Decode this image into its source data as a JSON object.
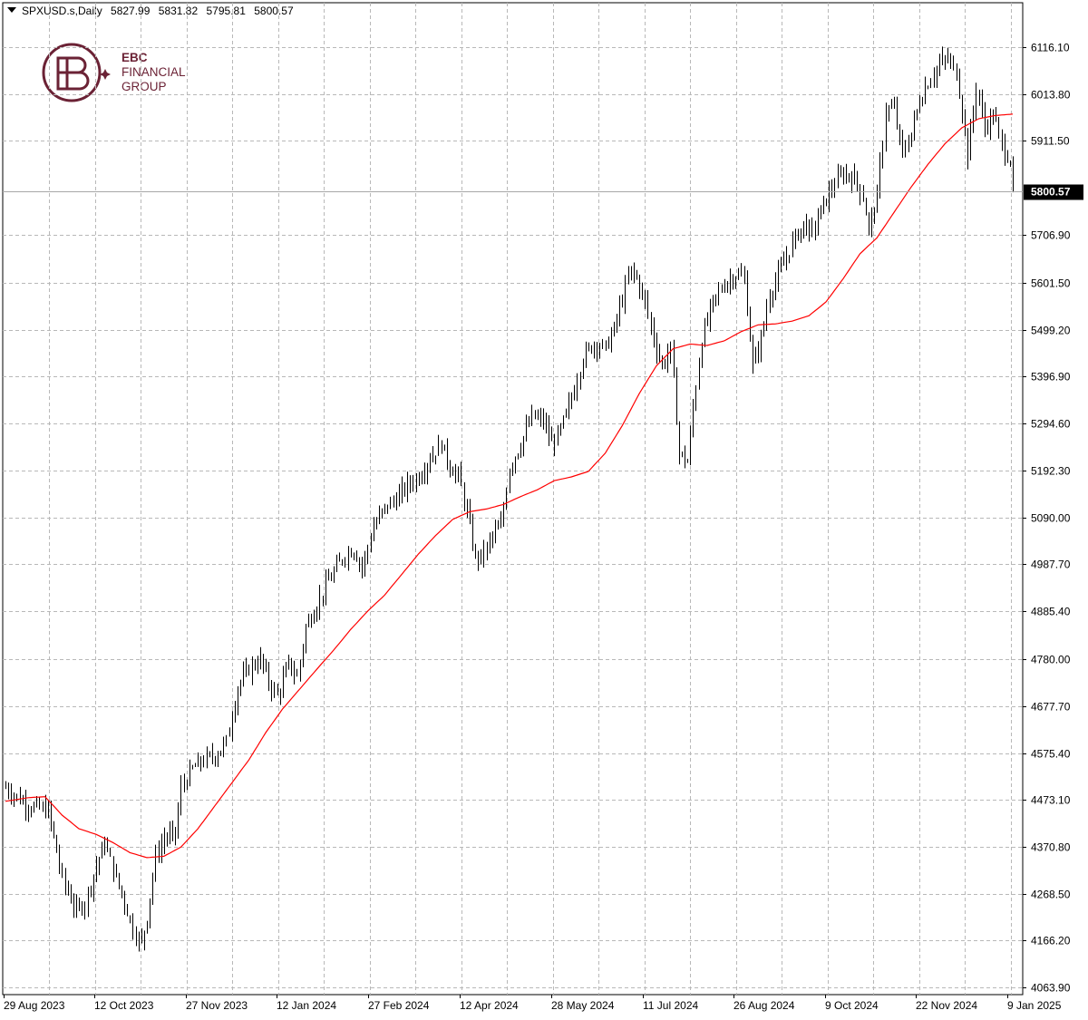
{
  "header": {
    "symbol": "SPXUSD.s,Daily",
    "open": "5827.99",
    "high": "5831.82",
    "low": "5795.81",
    "close": "5800.57"
  },
  "logo": {
    "line1": "EBC",
    "line2": "FINANCIAL",
    "line3": "GROUP",
    "color": "#6b2235"
  },
  "chart_data": {
    "type": "ohlc",
    "title": "",
    "price_labels": [
      "6116.10",
      "6013.80",
      "5911.50",
      "5706.90",
      "5601.50",
      "5499.20",
      "5396.90",
      "5294.60",
      "5192.30",
      "5090.00",
      "4987.70",
      "4885.40",
      "4780.00",
      "4677.70",
      "4575.40",
      "4473.10",
      "4370.80",
      "4268.50",
      "4166.20",
      "4063.90"
    ],
    "price_ticks": [
      6116.1,
      6013.8,
      5911.5,
      5706.9,
      5601.5,
      5499.2,
      5396.9,
      5294.6,
      5192.3,
      5090.0,
      4987.7,
      4885.4,
      4780.0,
      4677.7,
      4575.4,
      4473.1,
      4370.8,
      4268.5,
      4166.2,
      4063.9
    ],
    "current_price": 5800.57,
    "current_price_label": "5800.57",
    "x_labels": [
      "29 Aug 2023",
      "12 Oct 2023",
      "27 Nov 2023",
      "12 Jan 2024",
      "27 Feb 2024",
      "12 Apr 2024",
      "28 May 2024",
      "11 Jul 2024",
      "26 Aug 2024",
      "9 Oct 2024",
      "22 Nov 2024",
      "9 Jan 2025"
    ],
    "ylim": [
      4063.9,
      6116.1
    ],
    "grid": true,
    "moving_average_color": "#ff0000",
    "bar_color": "#000000",
    "bar_keypoints": [
      [
        0,
        4500
      ],
      [
        8,
        4460
      ],
      [
        15,
        4450
      ],
      [
        20,
        4300
      ],
      [
        25,
        4230
      ],
      [
        28,
        4250
      ],
      [
        32,
        4330
      ],
      [
        35,
        4380
      ],
      [
        38,
        4320
      ],
      [
        42,
        4250
      ],
      [
        45,
        4190
      ],
      [
        48,
        4160
      ],
      [
        50,
        4220
      ],
      [
        53,
        4350
      ],
      [
        56,
        4390
      ],
      [
        60,
        4400
      ],
      [
        62,
        4500
      ],
      [
        66,
        4540
      ],
      [
        70,
        4560
      ],
      [
        74,
        4570
      ],
      [
        78,
        4600
      ],
      [
        82,
        4720
      ],
      [
        86,
        4760
      ],
      [
        90,
        4780
      ],
      [
        93,
        4730
      ],
      [
        96,
        4700
      ],
      [
        100,
        4770
      ],
      [
        103,
        4740
      ],
      [
        106,
        4850
      ],
      [
        110,
        4900
      ],
      [
        113,
        4940
      ],
      [
        116,
        4970
      ],
      [
        120,
        5010
      ],
      [
        123,
        5020
      ],
      [
        126,
        4980
      ],
      [
        130,
        5070
      ],
      [
        134,
        5110
      ],
      [
        138,
        5130
      ],
      [
        142,
        5160
      ],
      [
        146,
        5180
      ],
      [
        150,
        5220
      ],
      [
        154,
        5250
      ],
      [
        157,
        5200
      ],
      [
        160,
        5180
      ],
      [
        163,
        5100
      ],
      [
        166,
        5000
      ],
      [
        169,
        5010
      ],
      [
        172,
        5050
      ],
      [
        175,
        5070
      ],
      [
        178,
        5200
      ],
      [
        182,
        5250
      ],
      [
        186,
        5310
      ],
      [
        190,
        5300
      ],
      [
        193,
        5250
      ],
      [
        196,
        5280
      ],
      [
        200,
        5350
      ],
      [
        204,
        5440
      ],
      [
        208,
        5470
      ],
      [
        212,
        5460
      ],
      [
        215,
        5500
      ],
      [
        218,
        5570
      ],
      [
        221,
        5630
      ],
      [
        223,
        5610
      ],
      [
        226,
        5560
      ],
      [
        229,
        5480
      ],
      [
        232,
        5420
      ],
      [
        235,
        5460
      ],
      [
        238,
        5230
      ],
      [
        241,
        5210
      ],
      [
        243,
        5330
      ],
      [
        246,
        5480
      ],
      [
        250,
        5560
      ],
      [
        254,
        5600
      ],
      [
        258,
        5620
      ],
      [
        261,
        5610
      ],
      [
        264,
        5420
      ],
      [
        267,
        5480
      ],
      [
        270,
        5580
      ],
      [
        274,
        5630
      ],
      [
        278,
        5690
      ],
      [
        282,
        5730
      ],
      [
        285,
        5710
      ],
      [
        288,
        5760
      ],
      [
        292,
        5810
      ],
      [
        296,
        5840
      ],
      [
        300,
        5830
      ],
      [
        303,
        5790
      ],
      [
        305,
        5720
      ],
      [
        308,
        5790
      ],
      [
        311,
        5980
      ],
      [
        314,
        5980
      ],
      [
        317,
        5880
      ],
      [
        320,
        5930
      ],
      [
        323,
        6000
      ],
      [
        326,
        6040
      ],
      [
        330,
        6080
      ],
      [
        333,
        6090
      ],
      [
        336,
        6060
      ],
      [
        338,
        5980
      ],
      [
        340,
        5880
      ],
      [
        343,
        6030
      ],
      [
        346,
        5940
      ],
      [
        349,
        5970
      ],
      [
        352,
        5900
      ],
      [
        355,
        5870
      ],
      [
        356,
        5800
      ]
    ],
    "ma_keypoints": [
      [
        0,
        4470
      ],
      [
        8,
        4478
      ],
      [
        14,
        4480
      ],
      [
        20,
        4440
      ],
      [
        26,
        4410
      ],
      [
        32,
        4398
      ],
      [
        38,
        4380
      ],
      [
        44,
        4358
      ],
      [
        50,
        4347
      ],
      [
        56,
        4350
      ],
      [
        62,
        4370
      ],
      [
        68,
        4410
      ],
      [
        74,
        4460
      ],
      [
        80,
        4510
      ],
      [
        86,
        4560
      ],
      [
        92,
        4620
      ],
      [
        98,
        4672
      ],
      [
        104,
        4715
      ],
      [
        110,
        4758
      ],
      [
        116,
        4800
      ],
      [
        122,
        4845
      ],
      [
        128,
        4885
      ],
      [
        134,
        4920
      ],
      [
        140,
        4965
      ],
      [
        146,
        5010
      ],
      [
        152,
        5050
      ],
      [
        158,
        5085
      ],
      [
        164,
        5102
      ],
      [
        170,
        5108
      ],
      [
        176,
        5118
      ],
      [
        182,
        5135
      ],
      [
        188,
        5150
      ],
      [
        194,
        5170
      ],
      [
        200,
        5178
      ],
      [
        206,
        5190
      ],
      [
        212,
        5230
      ],
      [
        218,
        5290
      ],
      [
        224,
        5360
      ],
      [
        230,
        5420
      ],
      [
        236,
        5458
      ],
      [
        242,
        5468
      ],
      [
        248,
        5465
      ],
      [
        254,
        5475
      ],
      [
        260,
        5495
      ],
      [
        266,
        5510
      ],
      [
        272,
        5512
      ],
      [
        278,
        5518
      ],
      [
        284,
        5530
      ],
      [
        290,
        5560
      ],
      [
        296,
        5610
      ],
      [
        302,
        5665
      ],
      [
        308,
        5700
      ],
      [
        314,
        5755
      ],
      [
        320,
        5810
      ],
      [
        326,
        5860
      ],
      [
        332,
        5905
      ],
      [
        338,
        5940
      ],
      [
        344,
        5960
      ],
      [
        350,
        5967
      ],
      [
        356,
        5970
      ]
    ],
    "total_bars": 357
  }
}
